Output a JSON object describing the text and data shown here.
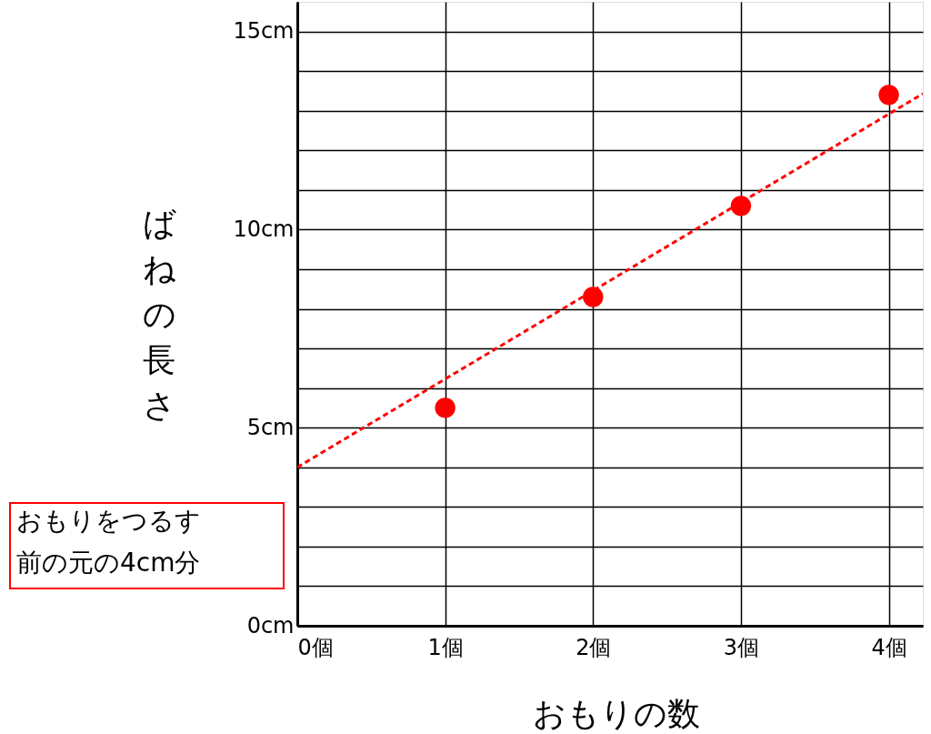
{
  "chart_data": {
    "type": "scatter",
    "xlabel": "おもりの数",
    "ylabel": "ばねの長さ",
    "xlim": [
      0,
      4.23
    ],
    "ylim": [
      0,
      15.75
    ],
    "xticks": [
      {
        "value": 0,
        "label": "0個"
      },
      {
        "value": 1,
        "label": "1個"
      },
      {
        "value": 2,
        "label": "2個"
      },
      {
        "value": 3,
        "label": "3個"
      },
      {
        "value": 4,
        "label": "4個"
      }
    ],
    "yticks": [
      {
        "value": 0,
        "label": "0cm"
      },
      {
        "value": 1,
        "label": null
      },
      {
        "value": 2,
        "label": null
      },
      {
        "value": 3,
        "label": null
      },
      {
        "value": 4,
        "label": null
      },
      {
        "value": 5,
        "label": "5cm"
      },
      {
        "value": 6,
        "label": null
      },
      {
        "value": 7,
        "label": null
      },
      {
        "value": 8,
        "label": null
      },
      {
        "value": 9,
        "label": null
      },
      {
        "value": 10,
        "label": "10cm"
      },
      {
        "value": 11,
        "label": null
      },
      {
        "value": 12,
        "label": null
      },
      {
        "value": 13,
        "label": null
      },
      {
        "value": 14,
        "label": null
      },
      {
        "value": 15,
        "label": "15cm"
      }
    ],
    "grid": true,
    "marker": "circle",
    "series": [
      {
        "color": "#ff0000",
        "x": [
          1,
          2,
          3,
          4
        ],
        "values": [
          5.5,
          8.3,
          10.6,
          13.4
        ]
      },
      {
        "type": "line",
        "color": "#ff0000",
        "line_style": "dashed",
        "marker": "none",
        "x": [
          0,
          4.23
        ],
        "values": [
          4,
          13.43
        ]
      }
    ],
    "annotations": [
      "おもりをつるす",
      "前の元の4cm分"
    ]
  }
}
